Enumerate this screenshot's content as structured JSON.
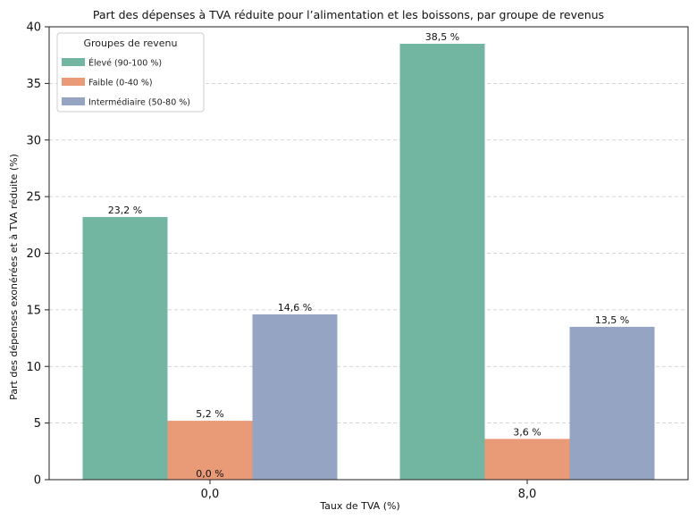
{
  "chart_data": {
    "type": "bar",
    "title": "Part des dépenses à TVA réduite pour l’alimentation et les boissons, par groupe de revenus",
    "xlabel": "Taux de TVA (%)",
    "ylabel": "Part des dépenses exonérées et à TVA réduite (%)",
    "categories": [
      "0,0",
      "8,0"
    ],
    "ylim": [
      0,
      40
    ],
    "yticks": [
      0,
      5,
      10,
      15,
      20,
      25,
      30,
      35,
      40
    ],
    "grid": true,
    "legend": {
      "title": "Groupes de revenu",
      "placement": "top-left"
    },
    "series": [
      {
        "name": "Élevé (90-100 %)",
        "color": "#72b5a0",
        "values": [
          23.2,
          38.5
        ],
        "labels": [
          "23,2 %",
          "38,5 %"
        ]
      },
      {
        "name": "Faible (0-40 %)",
        "color": "#e99a77",
        "values": [
          5.2,
          3.6
        ],
        "labels": [
          "5,2 %",
          "3,6 %"
        ]
      },
      {
        "name": "Intermédiaire (50-80 %)",
        "color": "#95a4c3",
        "values": [
          14.6,
          13.5
        ],
        "labels": [
          "14,6 %",
          "13,5 %"
        ]
      }
    ],
    "annotations": [
      {
        "text": "0,0 %",
        "category": 0,
        "value": 0
      }
    ]
  }
}
